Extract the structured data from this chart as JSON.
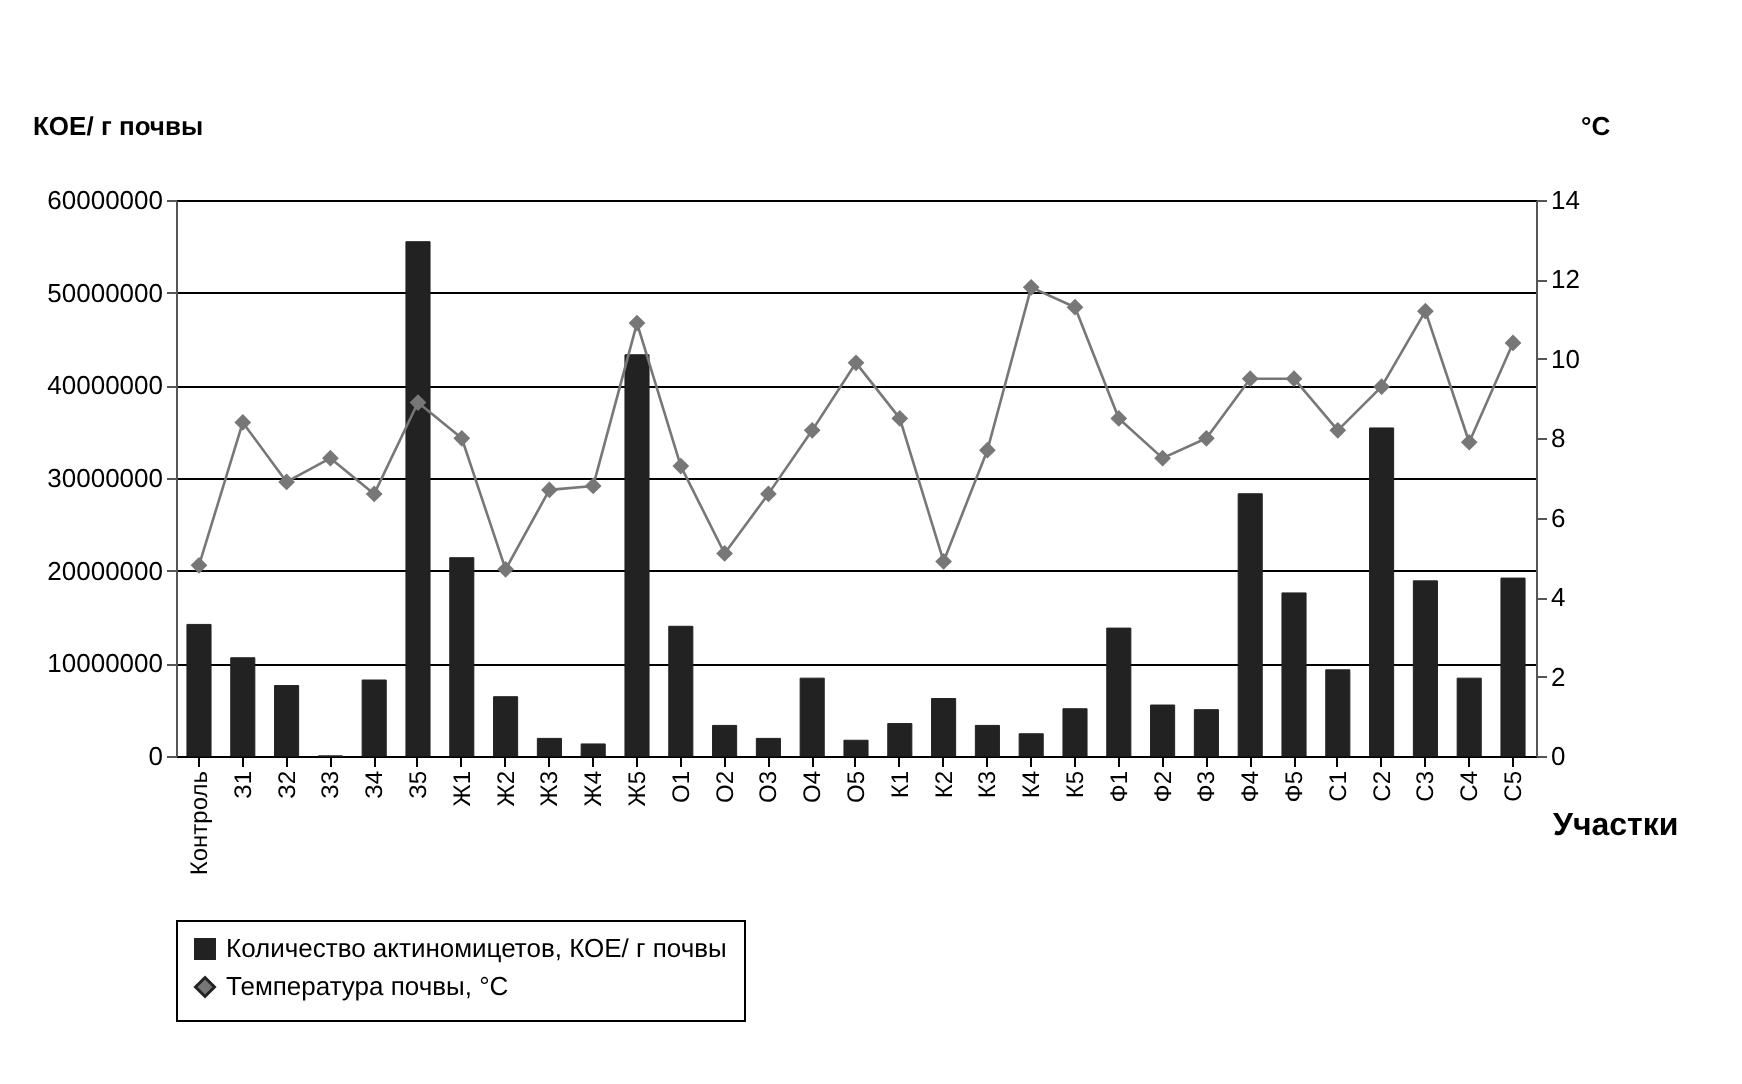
{
  "chart_data": {
    "type": "bar",
    "categories": [
      "Контроль",
      "З1",
      "З2",
      "З3",
      "З4",
      "З5",
      "Ж1",
      "Ж2",
      "Ж3",
      "Ж4",
      "Ж5",
      "О1",
      "О2",
      "О3",
      "О4",
      "О5",
      "К1",
      "К2",
      "К3",
      "К4",
      "К5",
      "Ф1",
      "Ф2",
      "Ф3",
      "Ф4",
      "Ф5",
      "С1",
      "С2",
      "С3",
      "С4",
      "С5"
    ],
    "ylabel": "КОЕ/ г почвы",
    "y2label": "°С",
    "xlabel": "Участки",
    "ylim": [
      0,
      60000000
    ],
    "yticks": [
      0,
      10000000,
      20000000,
      30000000,
      40000000,
      50000000,
      60000000
    ],
    "y2lim": [
      0,
      14
    ],
    "y2ticks": [
      0,
      2,
      4,
      6,
      8,
      10,
      12,
      14
    ],
    "grid": "y",
    "legend": "bottom",
    "series": [
      {
        "name": "Количество актиномицетов, КОЕ/ г почвы",
        "color": "#222222",
        "values": [
          14200000,
          10600000,
          7600000,
          0,
          8200000,
          55500000,
          21400000,
          6400000,
          1900000,
          1300000,
          43300000,
          14000000,
          3300000,
          1900000,
          8400000,
          1700000,
          3500000,
          6200000,
          3300000,
          2400000,
          5100000,
          13800000,
          5500000,
          5000000,
          28300000,
          17600000,
          9300000,
          35400000,
          18900000,
          8400000,
          19200000
        ]
      },
      {
        "name": "Температура почвы, °С",
        "type": "line",
        "axis": "y2",
        "marker": "diamond",
        "color": "#777777",
        "values": [
          4.8,
          8.4,
          6.9,
          7.5,
          6.6,
          8.9,
          8.0,
          4.7,
          6.7,
          6.8,
          10.9,
          7.3,
          5.1,
          6.6,
          8.2,
          9.9,
          8.5,
          4.9,
          7.7,
          11.8,
          11.3,
          8.5,
          7.5,
          8.0,
          9.5,
          9.5,
          8.2,
          9.3,
          11.2,
          7.9,
          10.4
        ]
      }
    ]
  }
}
